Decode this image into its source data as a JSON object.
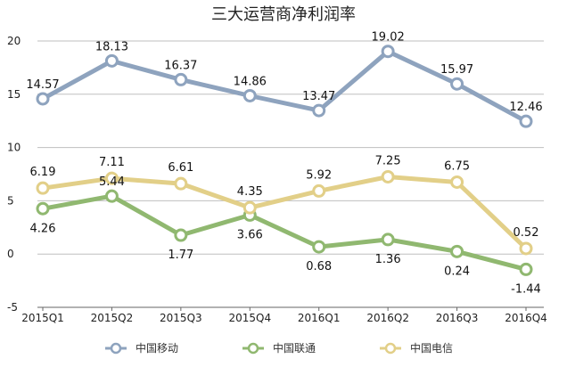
{
  "chart_data": {
    "type": "line",
    "title": "三大运营商净利润率",
    "xlabel": "",
    "ylabel": "",
    "categories": [
      "2015Q1",
      "2015Q2",
      "2015Q3",
      "2015Q4",
      "2016Q1",
      "2016Q2",
      "2016Q3",
      "2016Q4"
    ],
    "ylim": [
      -5,
      20
    ],
    "yticks": [
      -5,
      0,
      5,
      10,
      15,
      20
    ],
    "grid": true,
    "legend_position": "bottom",
    "series": [
      {
        "name": "中国移动",
        "color": "#8ea3be",
        "values": [
          14.57,
          18.13,
          16.37,
          14.86,
          13.47,
          19.02,
          15.97,
          12.46
        ],
        "labels": [
          "14.57",
          "18.13",
          "16.37",
          "14.86",
          "13.47",
          "19.02",
          "15.97",
          "12.46"
        ]
      },
      {
        "name": "中国联通",
        "color": "#90b870",
        "values": [
          4.26,
          5.44,
          1.77,
          3.66,
          0.68,
          1.36,
          0.24,
          -1.44
        ],
        "labels": [
          "4.26",
          "5.44",
          "1.77",
          "3.66",
          "0.68",
          "1.36",
          "0.24",
          "-1.44"
        ]
      },
      {
        "name": "中国电信",
        "color": "#e2cf88",
        "values": [
          6.19,
          7.11,
          6.61,
          4.35,
          5.92,
          7.25,
          6.75,
          0.52
        ],
        "labels": [
          "6.19",
          "7.11",
          "6.61",
          "4.35",
          "5.92",
          "7.25",
          "6.75",
          "0.52"
        ]
      }
    ]
  }
}
